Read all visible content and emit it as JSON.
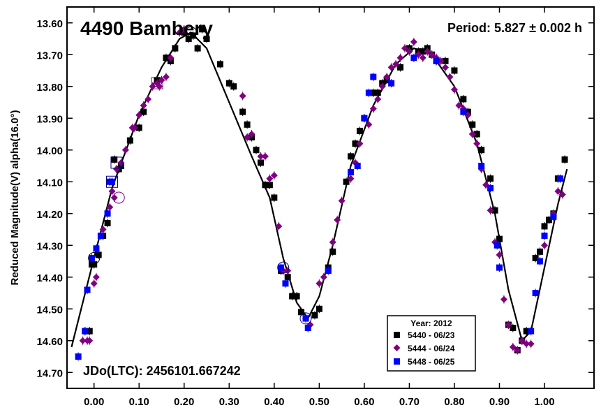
{
  "chart_data": {
    "type": "scatter",
    "title": "4490 Bambery",
    "period_label": "Period: 5.827 ± 0.002 h",
    "epoch_label": "JDo(LTC): 2456101.667242",
    "ylabel": "Reduced Magnitude(V) alpha(16.0°)",
    "xlabel": "",
    "xlim": [
      -0.06,
      1.11
    ],
    "ylim": [
      13.55,
      14.75
    ],
    "y_inverted": true,
    "x_ticks": [
      "0.00",
      "0.10",
      "0.20",
      "0.30",
      "0.40",
      "0.50",
      "0.60",
      "0.70",
      "0.80",
      "0.90",
      "1.00"
    ],
    "x_tick_values": [
      0,
      0.1,
      0.2,
      0.3,
      0.4,
      0.5,
      0.6,
      0.7,
      0.8,
      0.9,
      1.0
    ],
    "y_ticks": [
      "13.60",
      "13.70",
      "13.80",
      "13.90",
      "14.00",
      "14.10",
      "14.20",
      "14.30",
      "14.40",
      "14.50",
      "14.60",
      "14.70"
    ],
    "y_tick_values": [
      13.6,
      13.7,
      13.8,
      13.9,
      14.0,
      14.1,
      14.2,
      14.3,
      14.4,
      14.5,
      14.6,
      14.7
    ],
    "legend": {
      "title": "Year: 2012",
      "placement": "bottom-right",
      "entries": [
        "5440 - 06/23",
        "5444 - 06/24",
        "5448 - 06/25"
      ]
    },
    "series": [
      {
        "name": "5440 - 06/23",
        "marker": "square",
        "color": "#000000",
        "points": [
          [
            -0.02,
            14.57
          ],
          [
            -0.01,
            14.57
          ],
          [
            -0.005,
            14.36
          ],
          [
            0.0,
            14.36
          ],
          [
            0.01,
            14.33
          ],
          [
            0.02,
            14.27
          ],
          [
            0.03,
            14.23
          ],
          [
            0.045,
            14.03
          ],
          [
            0.055,
            14.06
          ],
          [
            0.06,
            14.05
          ],
          [
            0.08,
            13.97
          ],
          [
            0.1,
            13.93
          ],
          [
            0.11,
            13.88
          ],
          [
            0.14,
            13.78
          ],
          [
            0.16,
            13.71
          ],
          [
            0.17,
            13.72
          ],
          [
            0.18,
            13.68
          ],
          [
            0.2,
            13.63
          ],
          [
            0.21,
            13.65
          ],
          [
            0.22,
            13.64
          ],
          [
            0.23,
            13.68
          ],
          [
            0.24,
            13.62
          ],
          [
            0.25,
            13.65
          ],
          [
            0.28,
            13.73
          ],
          [
            0.3,
            13.79
          ],
          [
            0.31,
            13.8
          ],
          [
            0.33,
            13.88
          ],
          [
            0.34,
            13.92
          ],
          [
            0.35,
            13.96
          ],
          [
            0.36,
            14.0
          ],
          [
            0.37,
            14.04
          ],
          [
            0.38,
            14.11
          ],
          [
            0.39,
            14.11
          ],
          [
            0.4,
            14.15
          ],
          [
            0.415,
            14.38
          ],
          [
            0.43,
            14.4
          ],
          [
            0.44,
            14.46
          ],
          [
            0.45,
            14.46
          ],
          [
            0.46,
            14.51
          ],
          [
            0.47,
            14.53
          ],
          [
            0.49,
            14.52
          ],
          [
            0.5,
            14.5
          ],
          [
            0.52,
            14.37
          ],
          [
            0.53,
            14.32
          ],
          [
            0.56,
            14.1
          ],
          [
            0.57,
            14.02
          ],
          [
            0.58,
            13.98
          ],
          [
            0.59,
            13.94
          ],
          [
            0.6,
            13.9
          ],
          [
            0.62,
            13.82
          ],
          [
            0.63,
            13.82
          ],
          [
            0.64,
            13.79
          ],
          [
            0.65,
            13.78
          ],
          [
            0.68,
            13.74
          ],
          [
            0.7,
            13.68
          ],
          [
            0.72,
            13.69
          ],
          [
            0.73,
            13.69
          ],
          [
            0.74,
            13.68
          ],
          [
            0.75,
            13.7
          ],
          [
            0.76,
            13.72
          ],
          [
            0.78,
            13.72
          ],
          [
            0.8,
            13.75
          ],
          [
            0.82,
            13.84
          ],
          [
            0.83,
            13.88
          ],
          [
            0.84,
            13.92
          ],
          [
            0.85,
            13.95
          ],
          [
            0.86,
            14.0
          ],
          [
            0.88,
            14.09
          ],
          [
            0.89,
            14.19
          ],
          [
            0.9,
            14.28
          ],
          [
            0.92,
            14.55
          ],
          [
            0.93,
            14.56
          ],
          [
            0.94,
            14.63
          ],
          [
            0.95,
            14.6
          ],
          [
            0.96,
            14.57
          ],
          [
            0.98,
            14.34
          ],
          [
            0.99,
            14.32
          ],
          [
            1.0,
            14.24
          ],
          [
            1.01,
            14.22
          ],
          [
            1.02,
            14.2
          ],
          [
            1.03,
            14.09
          ],
          [
            1.045,
            14.03
          ]
        ]
      },
      {
        "name": "5444 - 06/24",
        "marker": "diamond",
        "color": "#800080",
        "points": [
          [
            -0.025,
            14.6
          ],
          [
            -0.015,
            14.6
          ],
          [
            -0.01,
            14.6
          ],
          [
            0.0,
            14.42
          ],
          [
            0.005,
            14.4
          ],
          [
            0.02,
            14.25
          ],
          [
            0.035,
            14.18
          ],
          [
            0.04,
            14.13
          ],
          [
            0.045,
            14.15
          ],
          [
            0.05,
            14.06
          ],
          [
            0.06,
            14.04
          ],
          [
            0.07,
            14.0
          ],
          [
            0.085,
            13.93
          ],
          [
            0.09,
            13.93
          ],
          [
            0.1,
            13.89
          ],
          [
            0.11,
            13.86
          ],
          [
            0.12,
            13.84
          ],
          [
            0.13,
            13.8
          ],
          [
            0.14,
            13.79
          ],
          [
            0.145,
            13.8
          ],
          [
            0.15,
            13.78
          ],
          [
            0.16,
            13.77
          ],
          [
            0.17,
            13.71
          ],
          [
            0.19,
            13.63
          ],
          [
            0.2,
            13.62
          ],
          [
            0.33,
            13.83
          ],
          [
            0.34,
            13.96
          ],
          [
            0.35,
            13.95
          ],
          [
            0.37,
            14.02
          ],
          [
            0.38,
            14.02
          ],
          [
            0.39,
            14.09
          ],
          [
            0.4,
            14.08
          ],
          [
            0.41,
            14.24
          ],
          [
            0.42,
            14.38
          ],
          [
            0.43,
            14.38
          ],
          [
            0.47,
            14.53
          ],
          [
            0.48,
            14.55
          ],
          [
            0.5,
            14.42
          ],
          [
            0.51,
            14.4
          ],
          [
            0.53,
            14.29
          ],
          [
            0.54,
            14.22
          ],
          [
            0.55,
            14.16
          ],
          [
            0.57,
            14.09
          ],
          [
            0.58,
            14.04
          ],
          [
            0.59,
            13.98
          ],
          [
            0.61,
            13.92
          ],
          [
            0.62,
            13.87
          ],
          [
            0.63,
            13.84
          ],
          [
            0.64,
            13.8
          ],
          [
            0.65,
            13.77
          ],
          [
            0.66,
            13.74
          ],
          [
            0.67,
            13.73
          ],
          [
            0.68,
            13.71
          ],
          [
            0.69,
            13.68
          ],
          [
            0.7,
            13.69
          ],
          [
            0.71,
            13.66
          ],
          [
            0.72,
            13.7
          ],
          [
            0.73,
            13.71
          ],
          [
            0.74,
            13.69
          ],
          [
            0.75,
            13.7
          ],
          [
            0.76,
            13.71
          ],
          [
            0.77,
            13.72
          ],
          [
            0.78,
            13.74
          ],
          [
            0.79,
            13.77
          ],
          [
            0.8,
            13.81
          ],
          [
            0.81,
            13.86
          ],
          [
            0.82,
            13.87
          ],
          [
            0.83,
            13.89
          ],
          [
            0.84,
            13.95
          ],
          [
            0.85,
            13.98
          ],
          [
            0.86,
            14.06
          ],
          [
            0.87,
            14.11
          ],
          [
            0.88,
            14.19
          ],
          [
            0.89,
            14.29
          ],
          [
            0.9,
            14.33
          ],
          [
            0.91,
            14.47
          ],
          [
            0.92,
            14.55
          ],
          [
            0.93,
            14.62
          ],
          [
            0.94,
            14.63
          ],
          [
            0.95,
            14.6
          ],
          [
            0.96,
            14.61
          ],
          [
            0.97,
            14.61
          ],
          [
            1.0,
            14.3
          ],
          [
            1.02,
            14.2
          ],
          [
            1.03,
            14.13
          ],
          [
            1.04,
            14.14
          ]
        ]
      },
      {
        "name": "5448 - 06/25",
        "marker": "square",
        "color": "#0000ff",
        "points": [
          [
            -0.035,
            14.65
          ],
          [
            -0.02,
            14.57
          ],
          [
            -0.015,
            14.44
          ],
          [
            -0.005,
            14.34
          ],
          [
            0.005,
            14.31
          ],
          [
            0.015,
            14.27
          ],
          [
            0.03,
            14.2
          ],
          [
            0.035,
            14.1
          ],
          [
            0.04,
            14.1
          ],
          [
            0.415,
            14.37
          ],
          [
            0.425,
            14.42
          ],
          [
            0.47,
            14.53
          ],
          [
            0.475,
            14.56
          ],
          [
            0.52,
            14.38
          ],
          [
            0.57,
            14.07
          ],
          [
            0.585,
            14.05
          ],
          [
            0.6,
            13.9
          ],
          [
            0.61,
            13.82
          ],
          [
            0.62,
            13.77
          ],
          [
            0.66,
            13.79
          ],
          [
            0.71,
            13.71
          ],
          [
            0.76,
            13.72
          ],
          [
            0.82,
            13.88
          ],
          [
            0.86,
            14.05
          ],
          [
            0.88,
            14.12
          ],
          [
            0.895,
            14.3
          ],
          [
            0.9,
            14.37
          ],
          [
            0.97,
            14.57
          ],
          [
            0.98,
            14.45
          ],
          [
            0.99,
            14.35
          ],
          [
            1.0,
            14.27
          ],
          [
            1.02,
            14.21
          ],
          [
            1.035,
            14.09
          ]
        ]
      }
    ],
    "fit_curve": {
      "color": "#000000",
      "points": [
        [
          -0.05,
          14.62
        ],
        [
          0.0,
          14.34
        ],
        [
          0.04,
          14.12
        ],
        [
          0.1,
          13.89
        ],
        [
          0.15,
          13.74
        ],
        [
          0.19,
          13.65
        ],
        [
          0.215,
          13.63
        ],
        [
          0.25,
          13.68
        ],
        [
          0.3,
          13.85
        ],
        [
          0.35,
          14.02
        ],
        [
          0.39,
          14.15
        ],
        [
          0.42,
          14.34
        ],
        [
          0.45,
          14.48
        ],
        [
          0.475,
          14.53
        ],
        [
          0.5,
          14.46
        ],
        [
          0.53,
          14.3
        ],
        [
          0.57,
          14.05
        ],
        [
          0.62,
          13.86
        ],
        [
          0.67,
          13.73
        ],
        [
          0.71,
          13.68
        ],
        [
          0.75,
          13.7
        ],
        [
          0.8,
          13.8
        ],
        [
          0.85,
          13.98
        ],
        [
          0.89,
          14.2
        ],
        [
          0.92,
          14.44
        ],
        [
          0.95,
          14.6
        ],
        [
          0.97,
          14.57
        ],
        [
          1.0,
          14.37
        ],
        [
          1.03,
          14.17
        ],
        [
          1.05,
          14.06
        ]
      ]
    },
    "highlighted_points": [
      {
        "x": 0.04,
        "y": 14.1,
        "marker": "open-square",
        "color": "#000080"
      },
      {
        "x": 0.05,
        "y": 14.04,
        "marker": "open-square",
        "color": "#000080"
      },
      {
        "x": 0.14,
        "y": 13.79,
        "marker": "open-square",
        "color": "#800080"
      },
      {
        "x": 0.0,
        "y": 14.34,
        "marker": "open-circle",
        "color": "#000000"
      },
      {
        "x": 0.055,
        "y": 14.15,
        "marker": "open-circle",
        "color": "#800080"
      },
      {
        "x": 0.42,
        "y": 14.37,
        "marker": "open-circle",
        "color": "#000080"
      },
      {
        "x": 0.215,
        "y": 13.63,
        "marker": "open-circle",
        "color": "#000000"
      },
      {
        "x": 0.47,
        "y": 14.53,
        "marker": "open-circle",
        "color": "#000080"
      }
    ],
    "grid": false
  }
}
